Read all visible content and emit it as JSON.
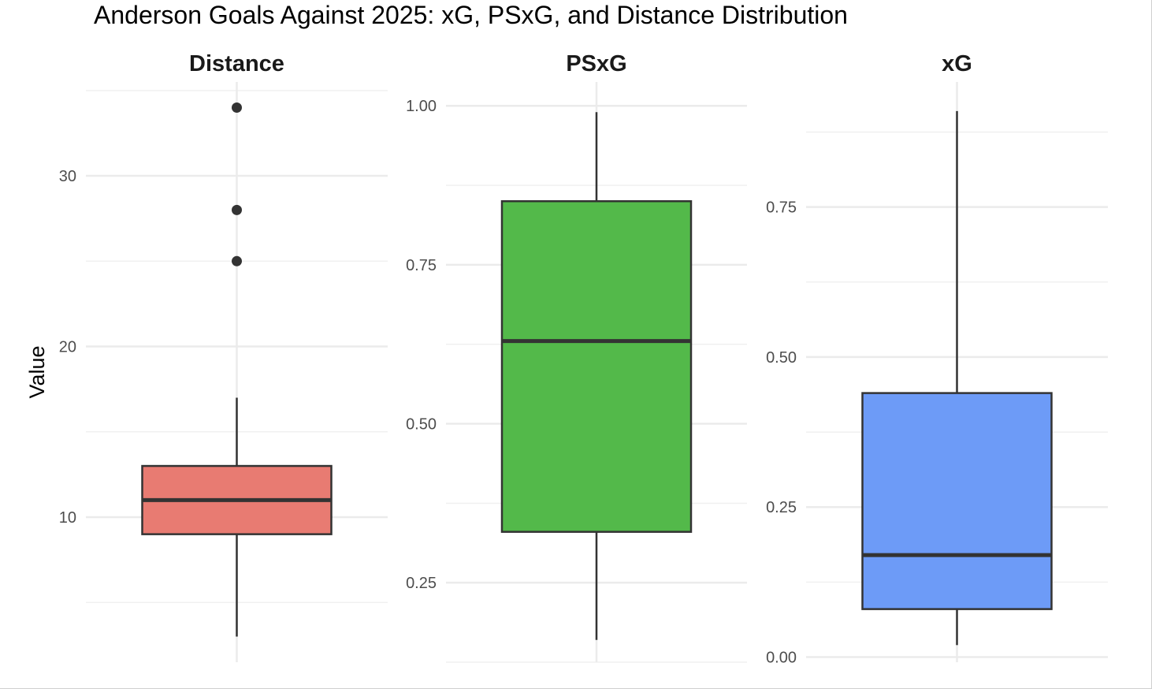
{
  "chart_data": {
    "type": "boxplot",
    "title": "Anderson Goals Against 2025: xG, PSxG, and Distance Distribution",
    "ylabel": "Value",
    "xlabel": "",
    "facet_scales": "free_y",
    "grid": true,
    "legend": "none",
    "panels": [
      {
        "name": "Distance",
        "color": "#E87B72",
        "ylim": [
          1.5,
          35.5
        ],
        "ticks": [
          10,
          20,
          30
        ],
        "tick_labels": [
          "10",
          "20",
          "30"
        ],
        "minor_ticks": [
          5,
          15,
          25,
          35
        ],
        "stats": {
          "min": 3,
          "q1": 9,
          "median": 11,
          "q3": 13,
          "max": 17
        },
        "outliers": [
          25,
          28,
          34
        ]
      },
      {
        "name": "PSxG",
        "color": "#53B94A",
        "ylim": [
          0.125,
          1.0375
        ],
        "ticks": [
          0.25,
          0.5,
          0.75,
          1.0
        ],
        "tick_labels": [
          "0.25",
          "0.50",
          "0.75",
          "1.00"
        ],
        "minor_ticks": [
          0.125,
          0.375,
          0.625,
          0.875
        ],
        "stats": {
          "min": 0.16,
          "q1": 0.33,
          "median": 0.63,
          "q3": 0.85,
          "max": 0.99
        },
        "outliers": []
      },
      {
        "name": "xG",
        "color": "#6D9BF7",
        "ylim": [
          -0.0085,
          0.9584
        ],
        "ticks": [
          0.0,
          0.25,
          0.5,
          0.75
        ],
        "tick_labels": [
          "0.00",
          "0.25",
          "0.50",
          "0.75"
        ],
        "minor_ticks": [
          0.125,
          0.375,
          0.625,
          0.875
        ],
        "stats": {
          "min": 0.02,
          "q1": 0.08,
          "median": 0.17,
          "q3": 0.44,
          "max": 0.91
        },
        "outliers": []
      }
    ]
  }
}
